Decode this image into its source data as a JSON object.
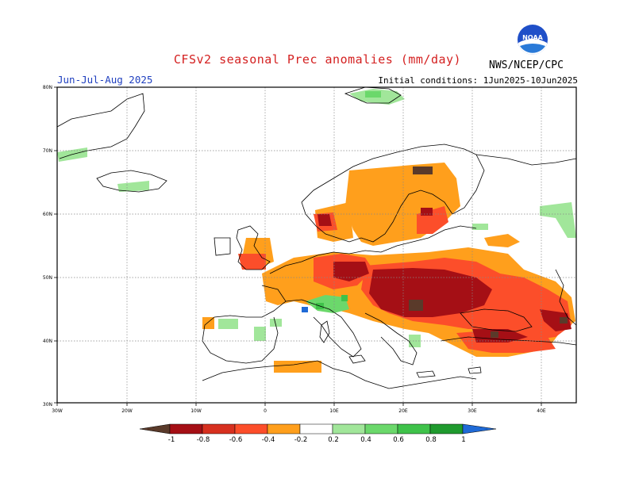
{
  "header": {
    "title": "CFSv2 seasonal Prec anomalies (mm/day)",
    "period": "Jun-Jul-Aug 2025",
    "initial_conditions": "Initial conditions: 1Jun2025-10Jun2025",
    "agency": "NWS/NCEP/CPC",
    "logo_text": "NOAA"
  },
  "axes": {
    "lat_labels": [
      "80N",
      "70N",
      "60N",
      "50N",
      "40N",
      "30N"
    ],
    "lon_labels": [
      "30W",
      "20W",
      "10W",
      "0",
      "10E",
      "20E",
      "30E",
      "40E"
    ]
  },
  "colorbar": {
    "labels": [
      "-1",
      "-0.8",
      "-0.6",
      "-0.4",
      "-0.2",
      "0.2",
      "0.4",
      "0.6",
      "0.8",
      "1"
    ],
    "colors": [
      "#5a3a2a",
      "#a50f15",
      "#d7301f",
      "#fc4e2a",
      "#ff9f1c",
      "#ffffff",
      "#a1e69a",
      "#6bd86b",
      "#3fc24a",
      "#1f9a2e",
      "#1f6ad6"
    ]
  },
  "legend_colors": {
    "strong_dry": "#5a3a2a",
    "very_dry": "#a50f15",
    "dry": "#d7301f",
    "moderate_dry": "#fc4e2a",
    "slight_dry": "#ff9f1c",
    "slight_wet": "#a1e69a",
    "moderate_wet": "#6bd86b",
    "wet": "#3fc24a"
  }
}
